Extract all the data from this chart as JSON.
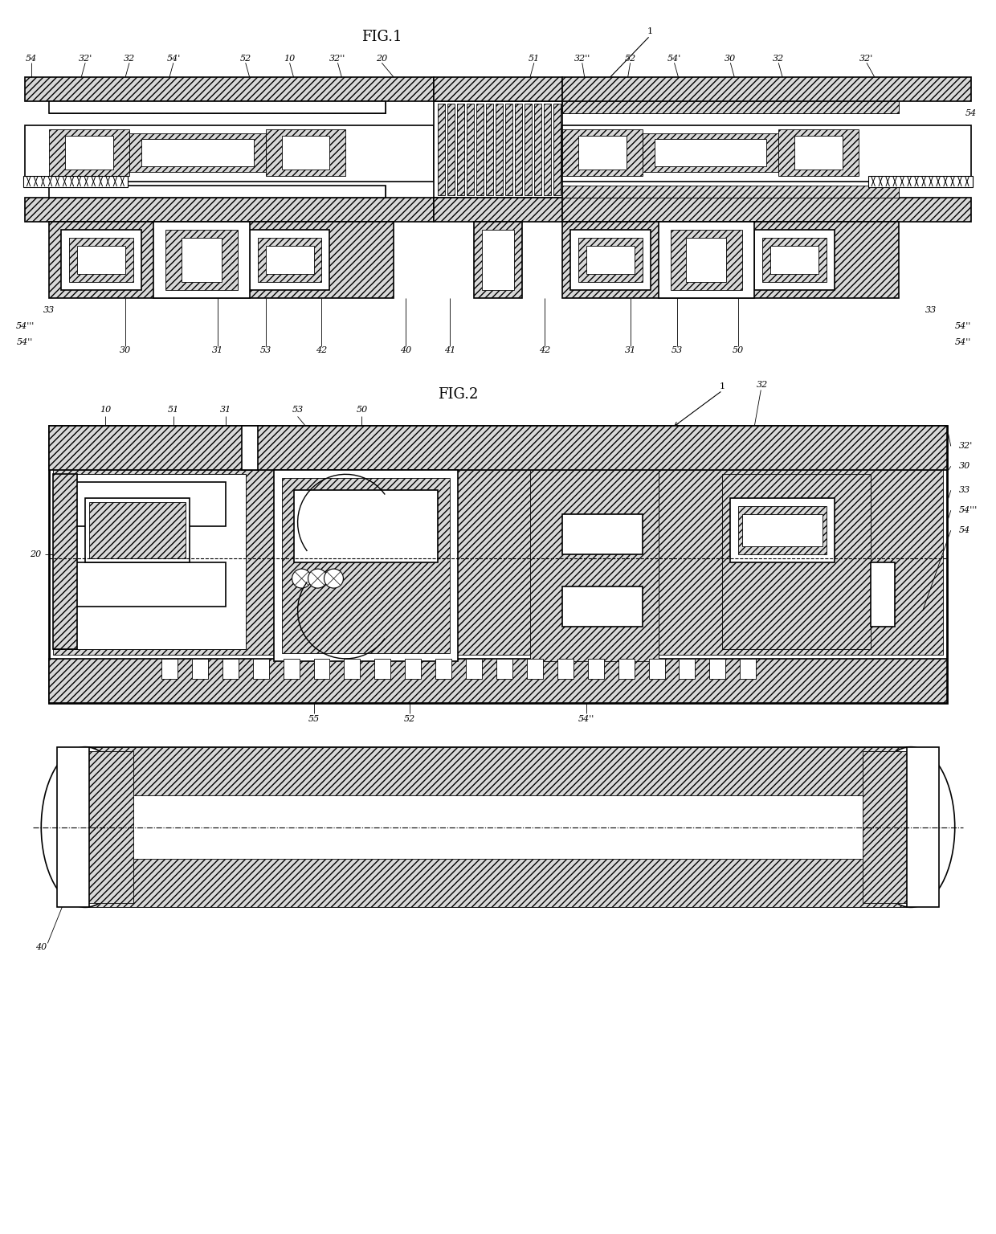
{
  "fig1_title": "FIG.1",
  "fig2_title": "FIG.2",
  "bg_color": "#ffffff",
  "fig_width": 12.4,
  "fig_height": 15.36,
  "dpi": 100,
  "lw_thin": 0.6,
  "lw_med": 1.2,
  "lw_thick": 2.0,
  "hatch_lw": 0.4
}
